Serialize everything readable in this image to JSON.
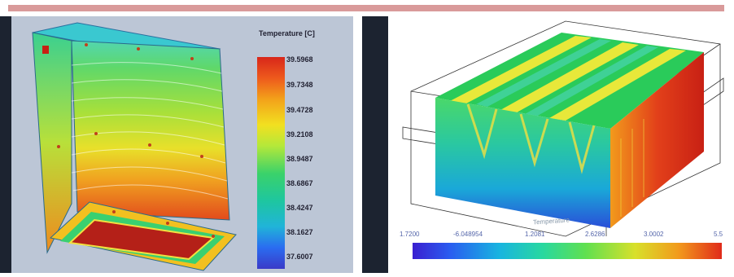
{
  "left_panel": {
    "legend_title": "Temperature [C]",
    "legend_ticks": [
      "39.5968",
      "39.7348",
      "39.4728",
      "39.2108",
      "38.9487",
      "38.6867",
      "38.4247",
      "38.1627",
      "37.6007"
    ]
  },
  "right_panel": {
    "legend_title": "Temperature",
    "scale_labels": [
      "1.7200",
      "-6.048954",
      "1.2081",
      "2.6286",
      "3.0002",
      "5.5"
    ]
  },
  "colors": {
    "top_bar": "#d99a9a",
    "hot": "#d8261a",
    "cold": "#3a3ac8"
  }
}
